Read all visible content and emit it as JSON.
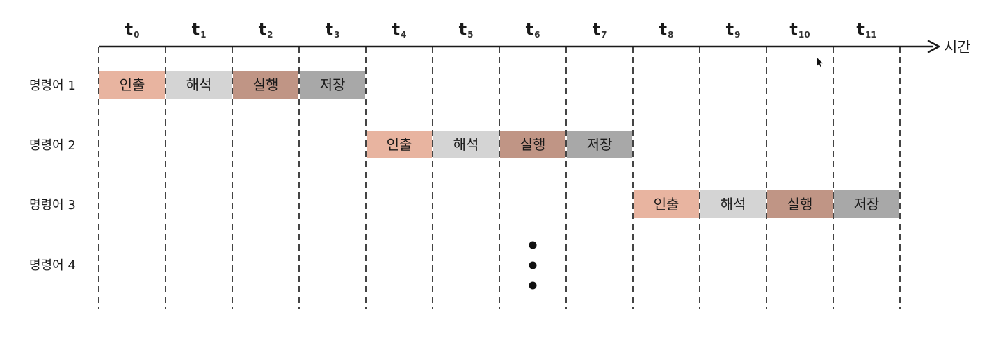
{
  "axis": {
    "label": "시간",
    "ticks": [
      {
        "main": "t",
        "sub": "0"
      },
      {
        "main": "t",
        "sub": "1"
      },
      {
        "main": "t",
        "sub": "2"
      },
      {
        "main": "t",
        "sub": "3"
      },
      {
        "main": "t",
        "sub": "4"
      },
      {
        "main": "t",
        "sub": "5"
      },
      {
        "main": "t",
        "sub": "6"
      },
      {
        "main": "t",
        "sub": "7"
      },
      {
        "main": "t",
        "sub": "8"
      },
      {
        "main": "t",
        "sub": "9"
      },
      {
        "main": "t",
        "sub": "10"
      },
      {
        "main": "t",
        "sub": "11"
      }
    ]
  },
  "rows": [
    {
      "label": "명령어 1",
      "start": 0,
      "stages": [
        "인출",
        "해석",
        "실행",
        "저장"
      ]
    },
    {
      "label": "명령어 2",
      "start": 4,
      "stages": [
        "인출",
        "해석",
        "실행",
        "저장"
      ]
    },
    {
      "label": "명령어 3",
      "start": 8,
      "stages": [
        "인출",
        "해석",
        "실행",
        "저장"
      ]
    },
    {
      "label": "명령어 4",
      "start": null,
      "stages": []
    }
  ],
  "stage_colors": {
    "인출": "#e8b4a0",
    "해석": "#d4d4d4",
    "실행": "#c09585",
    "저장": "#a8a8a8"
  },
  "continuation": "⋮"
}
